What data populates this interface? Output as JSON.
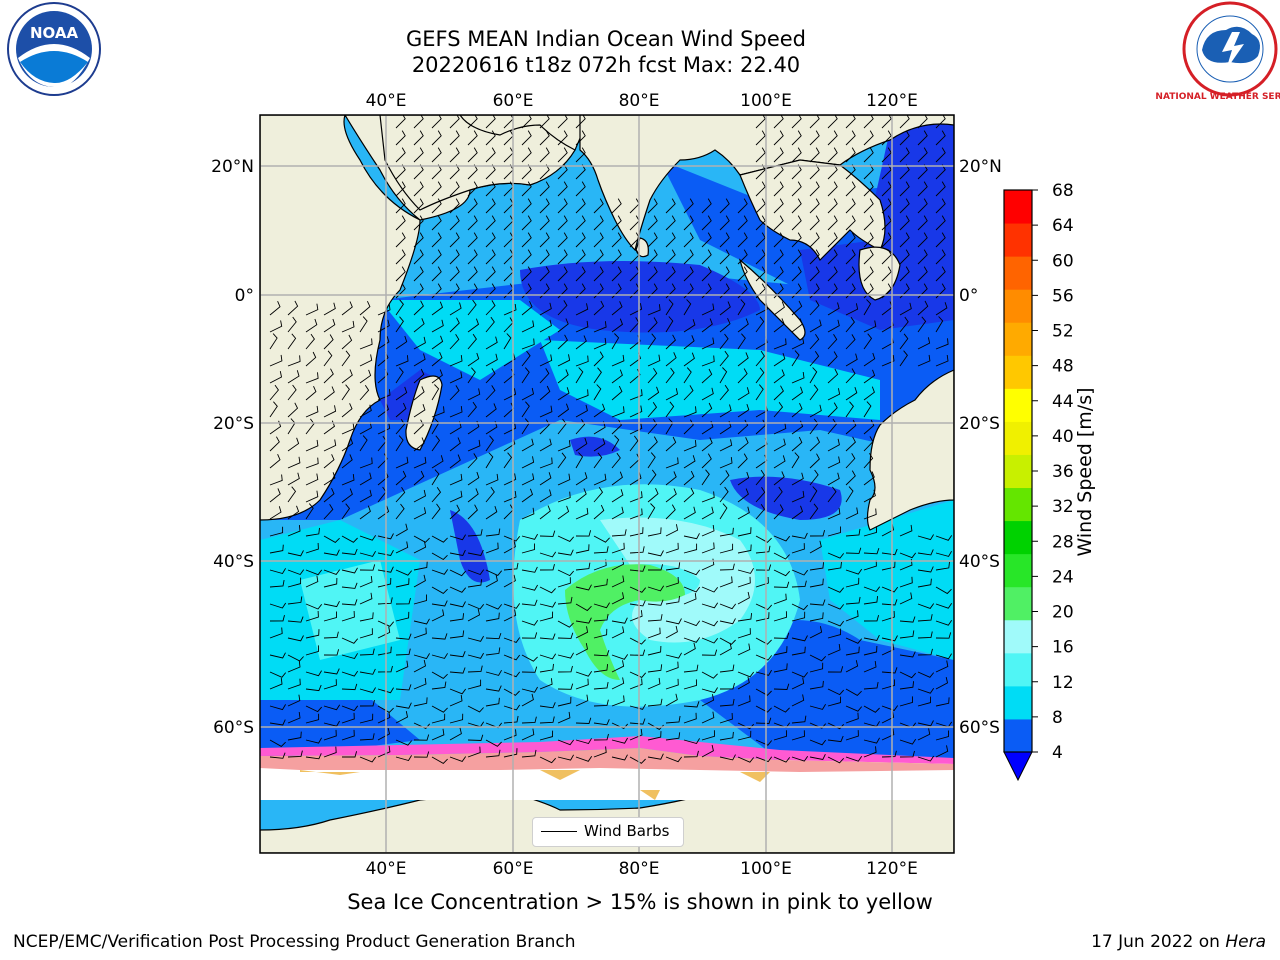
{
  "title": {
    "line1": "GEFS MEAN Indian Ocean Wind Speed",
    "line2": "20220616 t18z 072h fcst   Max: 22.40"
  },
  "map": {
    "lon_labels": [
      "40°E",
      "60°E",
      "80°E",
      "100°E",
      "120°E"
    ],
    "lat_labels": [
      "20°N",
      "0°",
      "20°S",
      "40°S",
      "60°S"
    ],
    "lon_range": [
      20,
      130
    ],
    "lat_range": [
      -75,
      28
    ],
    "land_color": "#efefdc",
    "ocean_base_color": "#29b6f6"
  },
  "colorbar": {
    "label": "Wind Speed [m/s]",
    "ticks": [
      "4",
      "8",
      "12",
      "16",
      "20",
      "24",
      "28",
      "32",
      "36",
      "40",
      "44",
      "48",
      "52",
      "56",
      "60",
      "64",
      "68"
    ],
    "colors": [
      "#0a5cf5",
      "#00dcf5",
      "#50f5f5",
      "#a0fafa",
      "#50f064",
      "#28e628",
      "#00d200",
      "#64e600",
      "#c8f000",
      "#f0f000",
      "#ffff00",
      "#ffc800",
      "#ffaa00",
      "#ff8c00",
      "#ff6400",
      "#ff3200",
      "#ff0000"
    ],
    "under_color": "#0000ff"
  },
  "legend": {
    "label": "Wind Barbs"
  },
  "footnote": "Sea Ice Concentration > 15% is shown in pink to yellow",
  "credit": "NCEP/EMC/Verification Post Processing Product Generation Branch",
  "date": {
    "text": "17 Jun 2022 on ",
    "machine": "Hera"
  },
  "logos": {
    "left": "NOAA",
    "right": "NATIONAL WEATHER SERVICE"
  }
}
